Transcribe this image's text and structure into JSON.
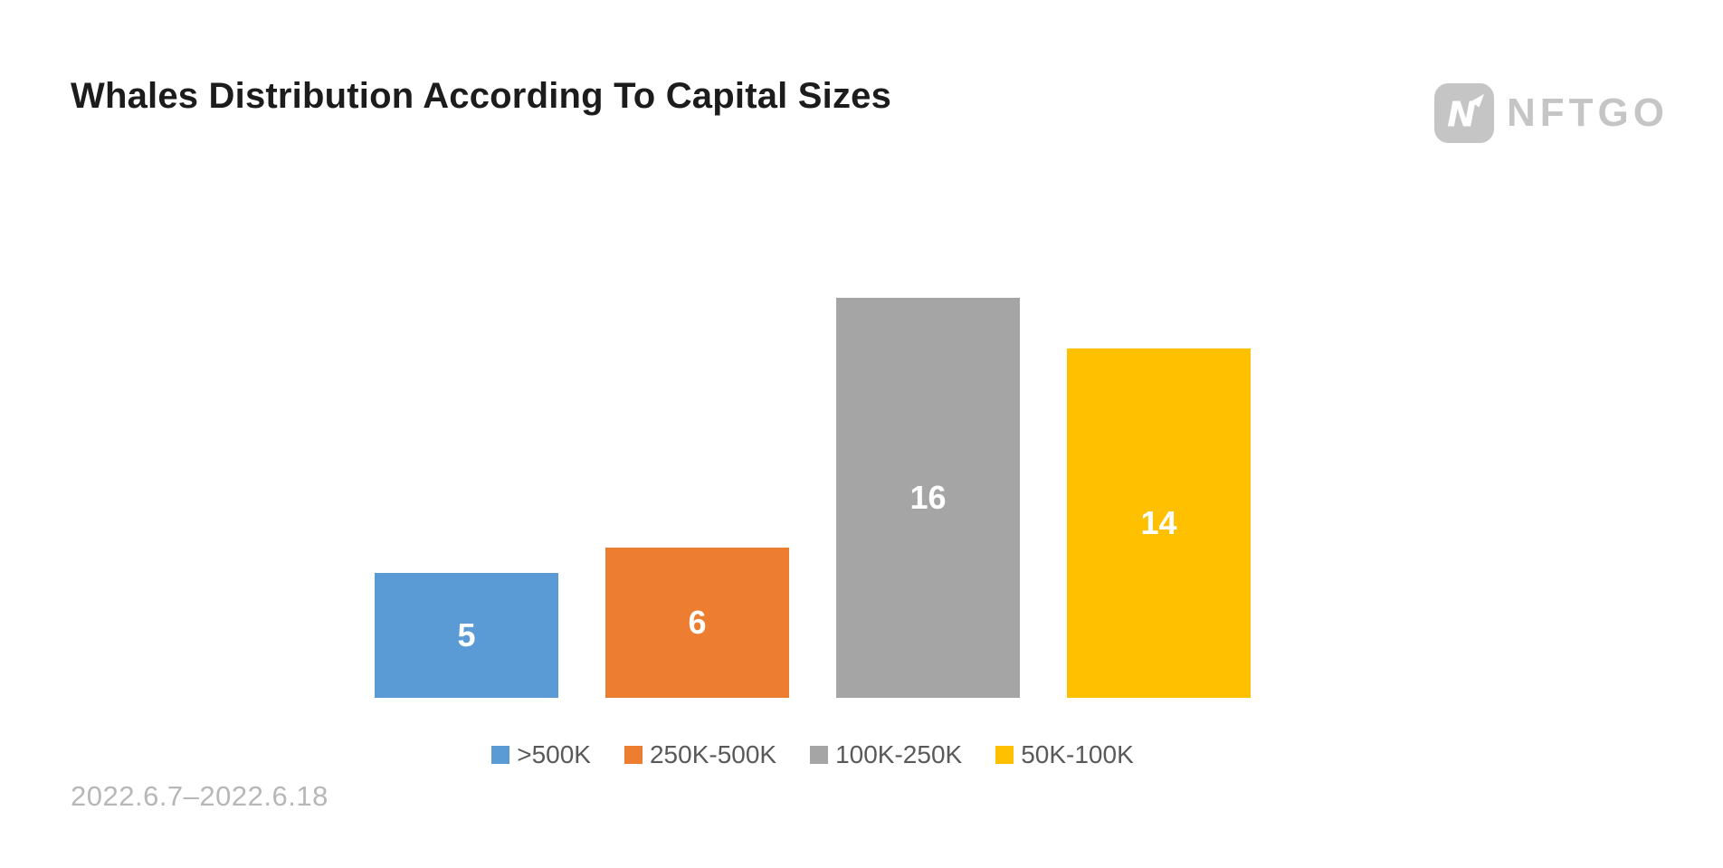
{
  "header": {
    "title": "Whales Distribution According To Capital Sizes",
    "logo_text": "NFTGO"
  },
  "footer": {
    "date_range": "2022.6.7–2022.6.18"
  },
  "chart_data": {
    "type": "bar",
    "title": "Whales Distribution According To Capital Sizes",
    "categories": [
      ">500K",
      "250K-500K",
      "100K-250K",
      "50K-100K"
    ],
    "values": [
      5,
      6,
      16,
      14
    ],
    "colors": [
      "#5B9BD5",
      "#ED7D31",
      "#A5A5A5",
      "#FFC000"
    ],
    "value_label_color": "#FFFFFF",
    "xlabel": "",
    "ylabel": "",
    "ylim": [
      0,
      17
    ],
    "grid": false,
    "legend_position": "bottom",
    "annotations": [
      "2022.6.7–2022.6.18"
    ]
  },
  "colors": {
    "title_text": "#1c1c1c",
    "legend_text": "#595959",
    "date_text": "#b7b7b7",
    "logo_gray": "#c5c5c5"
  }
}
